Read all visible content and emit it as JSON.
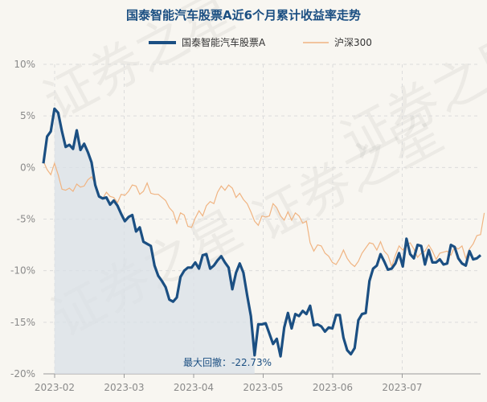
{
  "chart_data": {
    "type": "line",
    "title": "国泰智能汽车股票A近6个月累计收益率走势",
    "watermark": "证券之星",
    "ylim": [
      -20,
      10
    ],
    "y_ticks": [
      "10%",
      "5%",
      "0%",
      "-5%",
      "-10%",
      "-15%",
      "-20%"
    ],
    "x_ticks": [
      "2023-02",
      "2023-03",
      "2023-04",
      "2023-05",
      "2023-06",
      "2023-07"
    ],
    "annotation": "最大回撤：-22.73%",
    "colors": {
      "fund": "#1b4f82",
      "index": "#f0b482",
      "drawdown": "#d9e0e7"
    },
    "series": [
      {
        "name": "国泰智能汽车股票A",
        "values": [
          0.4,
          3,
          3.5,
          5.7,
          5.3,
          3.5,
          2,
          2.2,
          1.8,
          3.6,
          1.7,
          2.3,
          1.5,
          0.5,
          -1.7,
          -2.8,
          -3,
          -2.9,
          -3.6,
          -3.2,
          -3.7,
          -4.5,
          -5.2,
          -4.8,
          -4.6,
          -6.2,
          -5.8,
          -7.2,
          -7.4,
          -7.6,
          -9.5,
          -10.5,
          -11,
          -11.6,
          -12.8,
          -13,
          -12.6,
          -10.6,
          -10,
          -9.7,
          -9.7,
          -9.2,
          -9.8,
          -8.5,
          -8.4,
          -9.8,
          -9.5,
          -9,
          -8.6,
          -9.2,
          -9.7,
          -11.8,
          -10.2,
          -9.3,
          -10.2,
          -12.4,
          -14.4,
          -18.2,
          -15.2,
          -15.2,
          -15.1,
          -16.1,
          -17.1,
          -16.6,
          -18.3,
          -15.5,
          -14.1,
          -15.6,
          -14.2,
          -14.4,
          -13.9,
          -14.2,
          -13.4,
          -15.3,
          -15.2,
          -15.4,
          -15.9,
          -15.5,
          -15.6,
          -14.3,
          -14.3,
          -16.5,
          -17.7,
          -18.1,
          -17.5,
          -14.8,
          -14.2,
          -14.1,
          -11,
          -9.8,
          -9.5,
          -8.4,
          -9.1,
          -9.9,
          -9.8,
          -9.3,
          -8.3,
          -9.6,
          -6.9,
          -8.4,
          -8.8,
          -7.5,
          -7.6,
          -9.4,
          -8,
          -9.2,
          -9.2,
          -8.9,
          -9.4,
          -9.3,
          -7.5,
          -7.7,
          -8.8,
          -9.3,
          -9.5,
          -8.1,
          -8.9,
          -8.8,
          -8.5
        ]
      },
      {
        "name": "沪深300",
        "values": [
          0.6,
          -0.2,
          -0.7,
          0.4,
          -0.7,
          -2.1,
          -2.2,
          -2,
          -2.3,
          -1.6,
          -1.9,
          -1.8,
          -1.2,
          -0.9,
          -1.6,
          -2.7,
          -3,
          -2.4,
          -2.8,
          -2.9,
          -3.4,
          -2.6,
          -2.7,
          -2.3,
          -1.7,
          -1.8,
          -2.6,
          -2.3,
          -1.5,
          -2.5,
          -2.6,
          -2.6,
          -2.9,
          -3.2,
          -3.9,
          -4.3,
          -5.4,
          -4.4,
          -4.6,
          -5.7,
          -5.8,
          -4.9,
          -4.2,
          -4.7,
          -3.7,
          -3.3,
          -3.5,
          -2.4,
          -1.8,
          -2.2,
          -1.7,
          -2,
          -2.9,
          -2.5,
          -3.1,
          -3.5,
          -4.3,
          -5.2,
          -5.6,
          -4.7,
          -4.8,
          -4.7,
          -3.5,
          -3.9,
          -4.7,
          -5.1,
          -4.3,
          -5.1,
          -4.4,
          -4.7,
          -5.4,
          -5.2,
          -7.3,
          -8.1,
          -7.5,
          -7.6,
          -8.3,
          -8.6,
          -9.2,
          -9.4,
          -8.8,
          -8,
          -8.8,
          -9.3,
          -9.6,
          -9.1,
          -8.3,
          -7.8,
          -7.3,
          -7.4,
          -8,
          -7.2,
          -8.1,
          -8.5,
          -9.6,
          -8.5,
          -7.6,
          -8,
          -7.5,
          -7.3,
          -7.9,
          -8.7,
          -8.3,
          -8.1,
          -7.5,
          -8.1,
          -8.9,
          -8.3,
          -8.2,
          -8.1,
          -8.5,
          -7.7,
          -7.9,
          -7.6,
          -8.8,
          -7.9,
          -7.4,
          -6.6,
          -6.5,
          -4.4
        ]
      }
    ],
    "drawdown_range": [
      3,
      57
    ]
  }
}
